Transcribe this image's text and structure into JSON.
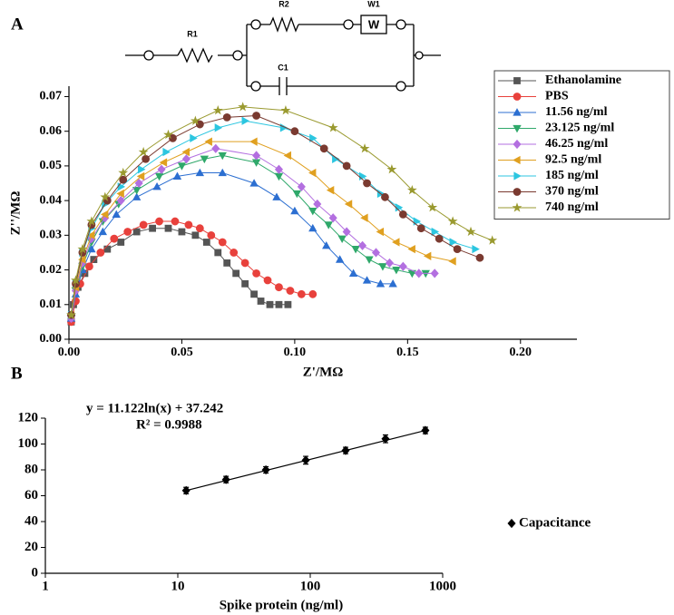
{
  "circuit": {
    "labels": [
      "R1",
      "R2",
      "W1",
      "W",
      "C1"
    ]
  },
  "chart_data": [
    {
      "type": "scatter",
      "panel_label": "A",
      "x_label": "Z'/MΩ",
      "y_label": "Z''/MΩ",
      "xlim": [
        0,
        0.225
      ],
      "ylim": [
        0,
        0.073
      ],
      "xticks": [
        {
          "value": 0,
          "label": "0.00"
        },
        0.05,
        {
          "value": 0.1,
          "label": "0.10"
        },
        0.15,
        {
          "value": 0.2,
          "label": "0.20"
        }
      ],
      "yticks": [
        {
          "value": 0,
          "label": "0.00"
        },
        0.01,
        0.02,
        0.03,
        0.04,
        0.05,
        0.06,
        0.07
      ],
      "legend": "right",
      "lines": true,
      "series": [
        {
          "name": "Ethanolamine",
          "color": "#555555",
          "marker": "square",
          "x": [
            0.001,
            0.002,
            0.004,
            0.007,
            0.011,
            0.017,
            0.023,
            0.03,
            0.037,
            0.044,
            0.05,
            0.056,
            0.061,
            0.066,
            0.07,
            0.074,
            0.078,
            0.082,
            0.085,
            0.089,
            0.093,
            0.097
          ],
          "values": [
            0.005,
            0.01,
            0.015,
            0.019,
            0.023,
            0.026,
            0.028,
            0.031,
            0.032,
            0.032,
            0.031,
            0.03,
            0.028,
            0.025,
            0.022,
            0.019,
            0.016,
            0.013,
            0.011,
            0.01,
            0.01,
            0.01
          ]
        },
        {
          "name": "PBS",
          "color": "#e8413c",
          "marker": "circle",
          "x": [
            0.001,
            0.003,
            0.005,
            0.009,
            0.014,
            0.02,
            0.026,
            0.033,
            0.04,
            0.047,
            0.053,
            0.058,
            0.063,
            0.068,
            0.073,
            0.078,
            0.083,
            0.088,
            0.093,
            0.098,
            0.103,
            0.108
          ],
          "values": [
            0.005,
            0.011,
            0.016,
            0.021,
            0.025,
            0.029,
            0.031,
            0.033,
            0.034,
            0.034,
            0.033,
            0.032,
            0.03,
            0.028,
            0.025,
            0.022,
            0.019,
            0.017,
            0.015,
            0.014,
            0.013,
            0.013
          ]
        },
        {
          "name": "11.56 ng/ml",
          "color": "#2c6fd1",
          "marker": "triangle-up",
          "x": [
            0.001,
            0.003,
            0.006,
            0.01,
            0.015,
            0.021,
            0.03,
            0.039,
            0.048,
            0.058,
            0.068,
            0.082,
            0.092,
            0.1,
            0.108,
            0.114,
            0.12,
            0.126,
            0.132,
            0.138,
            0.1435
          ],
          "values": [
            0.006,
            0.013,
            0.02,
            0.026,
            0.031,
            0.036,
            0.041,
            0.044,
            0.047,
            0.048,
            0.048,
            0.045,
            0.041,
            0.037,
            0.032,
            0.027,
            0.023,
            0.019,
            0.017,
            0.016,
            0.016
          ]
        },
        {
          "name": "23.125 ng/ml",
          "color": "#2fa86a",
          "marker": "triangle-down",
          "x": [
            0.001,
            0.003,
            0.006,
            0.01,
            0.015,
            0.022,
            0.03,
            0.04,
            0.05,
            0.06,
            0.068,
            0.083,
            0.093,
            0.101,
            0.108,
            0.115,
            0.121,
            0.127,
            0.133,
            0.139,
            0.145,
            0.152,
            0.158
          ],
          "values": [
            0.006,
            0.014,
            0.021,
            0.028,
            0.034,
            0.039,
            0.043,
            0.047,
            0.05,
            0.052,
            0.053,
            0.051,
            0.047,
            0.042,
            0.037,
            0.033,
            0.029,
            0.026,
            0.023,
            0.021,
            0.02,
            0.019,
            0.019
          ]
        },
        {
          "name": "46.25 ng/ml",
          "color": "#b36fe0",
          "marker": "diamond",
          "x": [
            0.001,
            0.003,
            0.006,
            0.01,
            0.016,
            0.023,
            0.031,
            0.041,
            0.052,
            0.065,
            0.083,
            0.093,
            0.103,
            0.11,
            0.117,
            0.123,
            0.13,
            0.136,
            0.142,
            0.148,
            0.155,
            0.162
          ],
          "values": [
            0.006,
            0.014,
            0.022,
            0.029,
            0.035,
            0.04,
            0.045,
            0.049,
            0.052,
            0.055,
            0.053,
            0.049,
            0.044,
            0.039,
            0.035,
            0.031,
            0.027,
            0.025,
            0.022,
            0.021,
            0.019,
            0.019
          ]
        },
        {
          "name": "92.5 ng/ml",
          "color": "#e0a020",
          "marker": "triangle-left",
          "x": [
            0.001,
            0.003,
            0.006,
            0.01,
            0.016,
            0.023,
            0.032,
            0.042,
            0.052,
            0.062,
            0.082,
            0.097,
            0.108,
            0.116,
            0.124,
            0.131,
            0.138,
            0.145,
            0.152,
            0.159,
            0.17
          ],
          "values": [
            0.007,
            0.015,
            0.023,
            0.03,
            0.036,
            0.042,
            0.047,
            0.051,
            0.054,
            0.057,
            0.057,
            0.053,
            0.048,
            0.043,
            0.039,
            0.035,
            0.031,
            0.028,
            0.026,
            0.024,
            0.0225
          ]
        },
        {
          "name": "185 ng/ml",
          "color": "#2cc6e0",
          "marker": "triangle-right",
          "x": [
            0.001,
            0.003,
            0.006,
            0.01,
            0.016,
            0.023,
            0.032,
            0.043,
            0.055,
            0.066,
            0.078,
            0.095,
            0.108,
            0.118,
            0.13,
            0.138,
            0.146,
            0.154,
            0.162,
            0.17,
            0.18
          ],
          "values": [
            0.007,
            0.016,
            0.025,
            0.032,
            0.039,
            0.044,
            0.049,
            0.054,
            0.058,
            0.061,
            0.063,
            0.061,
            0.058,
            0.052,
            0.047,
            0.042,
            0.038,
            0.034,
            0.031,
            0.028,
            0.026
          ]
        },
        {
          "name": "370 ng/ml",
          "color": "#7a3a30",
          "marker": "circle",
          "x": [
            0.001,
            0.003,
            0.006,
            0.01,
            0.017,
            0.024,
            0.034,
            0.046,
            0.058,
            0.07,
            0.083,
            0.1,
            0.113,
            0.123,
            0.132,
            0.14,
            0.148,
            0.156,
            0.164,
            0.172,
            0.182
          ],
          "values": [
            0.007,
            0.016,
            0.025,
            0.033,
            0.04,
            0.046,
            0.052,
            0.058,
            0.062,
            0.064,
            0.0645,
            0.06,
            0.055,
            0.05,
            0.045,
            0.041,
            0.036,
            0.032,
            0.029,
            0.026,
            0.0235
          ]
        },
        {
          "name": "740 ng/ml",
          "color": "#9a9a30",
          "marker": "star",
          "x": [
            0.001,
            0.003,
            0.006,
            0.01,
            0.016,
            0.024,
            0.033,
            0.044,
            0.056,
            0.066,
            0.077,
            0.096,
            0.117,
            0.131,
            0.143,
            0.152,
            0.161,
            0.17,
            0.178,
            0.1875
          ],
          "values": [
            0.007,
            0.017,
            0.026,
            0.034,
            0.041,
            0.048,
            0.054,
            0.059,
            0.063,
            0.066,
            0.067,
            0.066,
            0.061,
            0.055,
            0.049,
            0.043,
            0.038,
            0.034,
            0.031,
            0.0285
          ]
        }
      ]
    },
    {
      "type": "scatter",
      "panel_label": "B",
      "x_label": "Spike protein (ng/ml)",
      "xscale": "log",
      "xlim": [
        1,
        1000
      ],
      "xticks": [
        1,
        10,
        100,
        1000
      ],
      "ylim": [
        0,
        120
      ],
      "yticks": [
        0,
        20,
        40,
        60,
        80,
        100,
        120
      ],
      "annotations": [
        "y = 11.122ln(x) + 37.242",
        "R² = 0.9988"
      ],
      "trendline": true,
      "legend": "right",
      "lines": false,
      "series": [
        {
          "name": "Capacitance",
          "color": "#000000",
          "marker": "diamond",
          "x": [
            11.56,
            23.125,
            46.25,
            92.5,
            185,
            370,
            740
          ],
          "values": [
            64,
            72.5,
            80,
            87.5,
            95,
            104,
            110.5
          ],
          "errors": [
            2.5,
            2.5,
            2.5,
            3,
            2.5,
            3,
            2.5
          ]
        }
      ]
    }
  ]
}
